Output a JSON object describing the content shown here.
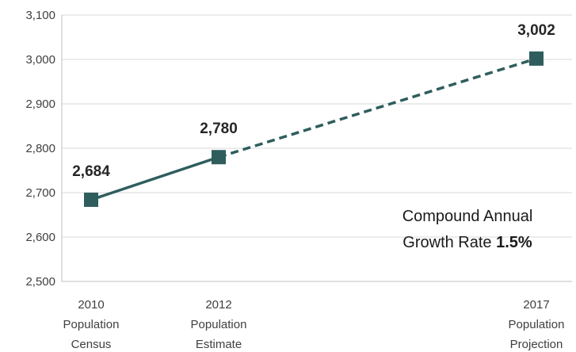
{
  "chart_data": {
    "type": "line",
    "categories": [
      [
        "2010",
        "Population",
        "Census"
      ],
      [
        "2012",
        "Population",
        "Estimate"
      ],
      [
        "2017",
        "Population",
        "Projection"
      ]
    ],
    "x": [
      2010,
      2012,
      2017
    ],
    "series": [
      {
        "values": [
          2684,
          2780,
          3002
        ],
        "value_labels": [
          "2,684",
          "2,780",
          "3,002"
        ],
        "segment_styles": [
          "solid",
          "dashed"
        ],
        "color": "#2f5d5d",
        "marker": "square"
      }
    ],
    "yticks": [
      "2,500",
      "2,600",
      "2,700",
      "2,800",
      "2,900",
      "3,000",
      "3,100"
    ],
    "ylim": [
      2500,
      3100
    ],
    "grid": true,
    "annotation": {
      "line1": "Compound Annual",
      "line2_prefix": "Growth Rate ",
      "line2_value": "1.5%"
    }
  }
}
